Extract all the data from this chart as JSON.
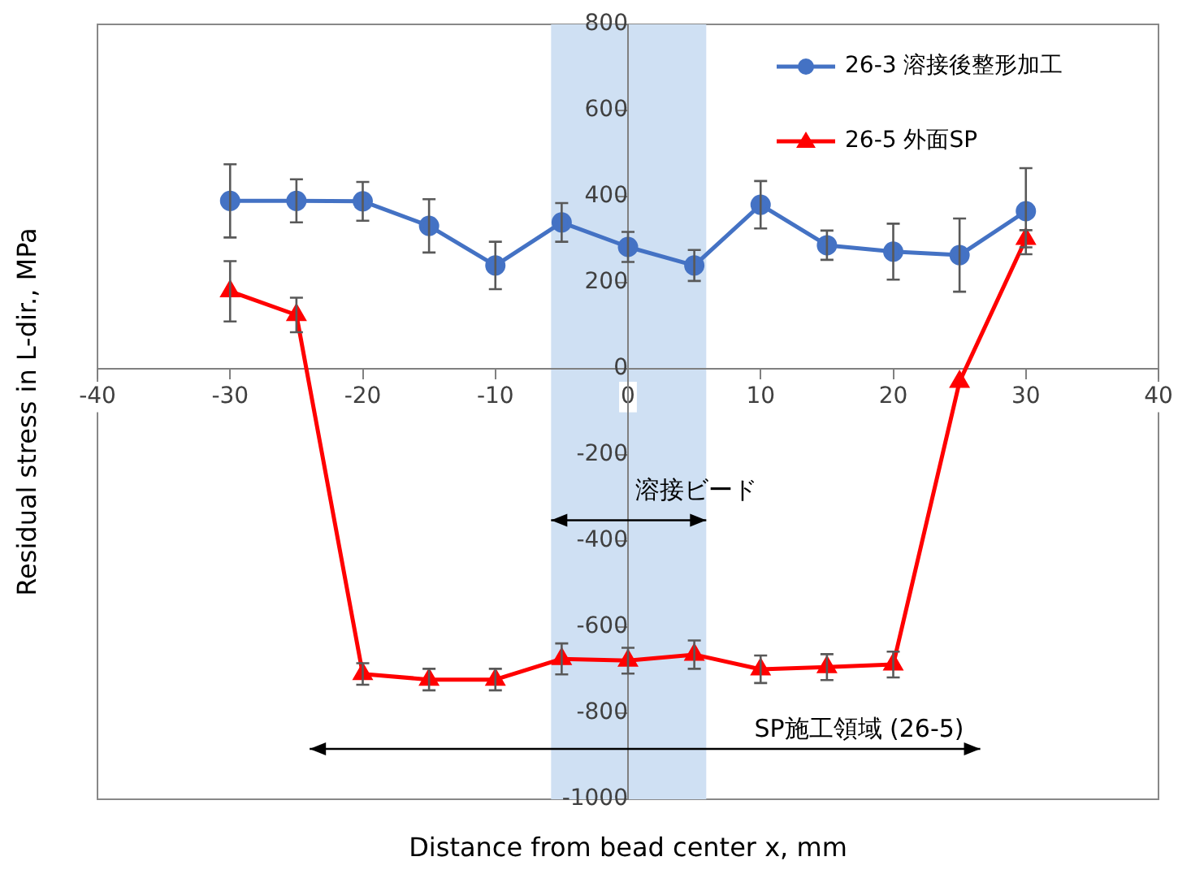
{
  "chart_data": {
    "type": "line",
    "xlabel": "Distance from bead center x, mm",
    "ylabel": "Residual stress in L-dir., MPa",
    "x": [
      -30,
      -25,
      -20,
      -15,
      -10,
      -5,
      0,
      5,
      10,
      15,
      20,
      25,
      30
    ],
    "series": [
      {
        "name": "26-3 溶接後整形加工",
        "color": "#4472c4",
        "marker": "circle",
        "values": [
          390,
          390,
          389,
          332,
          240,
          340,
          283,
          240,
          381,
          287,
          272,
          264,
          366
        ],
        "errors": [
          85,
          50,
          45,
          62,
          55,
          45,
          35,
          36,
          55,
          34,
          65,
          85,
          100
        ]
      },
      {
        "name": "26-5 外面SP",
        "color": "#ff0000",
        "marker": "triangle",
        "values": [
          180,
          125,
          -709,
          -722,
          -722,
          -674,
          -678,
          -664,
          -698,
          -693,
          -687,
          -30,
          302
        ],
        "errors": [
          70,
          40,
          25,
          25,
          25,
          36,
          30,
          33,
          32,
          30,
          30,
          null,
          20
        ]
      }
    ],
    "xlim": [
      -40,
      40
    ],
    "xticks": [
      -40,
      -30,
      -20,
      -10,
      0,
      10,
      20,
      30,
      40
    ],
    "ylim": [
      -1000,
      800
    ],
    "yticks": [
      -1000,
      -800,
      -600,
      -400,
      -200,
      0,
      200,
      400,
      600,
      800
    ],
    "bands": [
      {
        "axis": "x",
        "from": -5.8,
        "to": 5.9,
        "label": "溶接ビード",
        "color": "#cfe0f3"
      }
    ],
    "annotations": [
      "SP施工領域 (26-5)"
    ],
    "legend": "top right",
    "grid": false
  }
}
